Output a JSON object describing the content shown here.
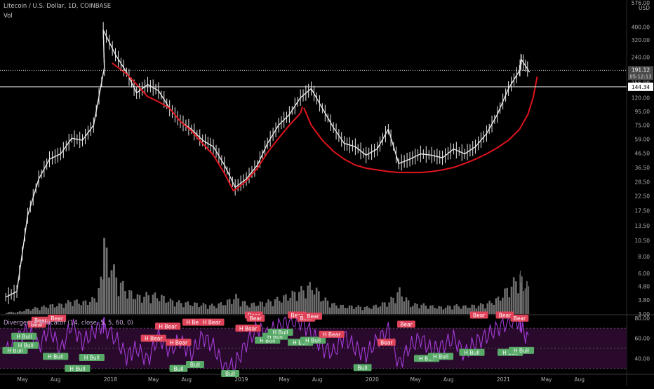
{
  "header": {
    "symbol_line": "Litecoin / U.S. Dollar, 1D, COINBASE",
    "volume_label": "Vol",
    "indicator_label": "Divergence Indicator (14, close, 5, 5, 60, 0)"
  },
  "price_axis": {
    "currency": "USD",
    "top_value": "576.00",
    "ticks": [
      "400.00",
      "320.00",
      "240.00",
      "190.00",
      "155.00",
      "120.00",
      "95.00",
      "75.00",
      "59.00",
      "46.50",
      "36.50",
      "28.50",
      "22.50",
      "17.50",
      "13.50",
      "10.50",
      "8.00",
      "6.00",
      "4.80",
      "3.80",
      "3.00"
    ],
    "last_price": "191.12",
    "countdown": "05:12:13",
    "support_price": "144.34"
  },
  "osc_axis": {
    "ticks": [
      "80.00",
      "60.00",
      "40.00"
    ]
  },
  "time_axis": {
    "labels": [
      "May",
      "Aug",
      "2018",
      "May",
      "Aug",
      "2019",
      "May",
      "Aug",
      "2020",
      "May",
      "Aug",
      "2021",
      "May",
      "Aug"
    ]
  },
  "colors": {
    "bg": "#000000",
    "candle": "#e8e8e8",
    "volume": "#6e6e6e",
    "curve": "#e0141c",
    "osc": "#a23bd6",
    "bull": "#58a868",
    "bear": "#e0445a",
    "axis_text": "#b0b0b0",
    "band": "#2a0a2c"
  },
  "chart_data": {
    "type": "line",
    "scale": "log",
    "series": [
      {
        "x": [
          "2017-03",
          "2017-04",
          "2017-05",
          "2017-06",
          "2017-07",
          "2017-08",
          "2017-09",
          "2017-10",
          "2017-11",
          "2017-12",
          "2017-12-12",
          "2018-01",
          "2018-02",
          "2018-03",
          "2018-04",
          "2018-05",
          "2018-06",
          "2018-07",
          "2018-08",
          "2018-09",
          "2018-10",
          "2018-11",
          "2018-12",
          "2019-01",
          "2019-02",
          "2019-03",
          "2019-04",
          "2019-05",
          "2019-06",
          "2019-07",
          "2019-08",
          "2019-09",
          "2019-10",
          "2019-11",
          "2019-12",
          "2020-01",
          "2020-02",
          "2020-03",
          "2020-04",
          "2020-05",
          "2020-06",
          "2020-07",
          "2020-08",
          "2020-09",
          "2020-10",
          "2020-11",
          "2020-12",
          "2021-01",
          "2021-02",
          "2021-02-20",
          "2021-03"
        ],
        "y": [
          4,
          4.4,
          16,
          30,
          42,
          46,
          60,
          58,
          75,
          200,
          380,
          250,
          185,
          130,
          150,
          135,
          100,
          80,
          70,
          58,
          52,
          38,
          26,
          30,
          38,
          55,
          75,
          90,
          120,
          140,
          100,
          72,
          55,
          52,
          45,
          50,
          70,
          39,
          42,
          46,
          45,
          43,
          50,
          46,
          52,
          65,
          90,
          140,
          190,
          230,
          185
        ]
      }
    ],
    "volume": [
      2,
      2,
      5,
      7,
      9,
      10,
      14,
      12,
      16,
      45,
      70,
      38,
      24,
      18,
      20,
      19,
      14,
      12,
      11,
      10,
      9,
      12,
      18,
      10,
      11,
      13,
      16,
      20,
      25,
      30,
      16,
      10,
      8,
      8,
      7,
      9,
      13,
      24,
      10,
      10,
      8,
      7,
      9,
      8,
      9,
      11,
      16,
      28,
      40,
      35,
      26
    ],
    "oscillator": [
      46,
      60,
      68,
      52,
      70,
      48,
      74,
      56,
      66,
      76,
      72,
      60,
      42,
      50,
      38,
      62,
      48,
      58,
      44,
      62,
      52,
      30,
      34,
      55,
      70,
      64,
      72,
      78,
      76,
      66,
      50,
      46,
      62,
      50,
      44,
      58,
      68,
      34,
      52,
      60,
      48,
      52,
      60,
      44,
      56,
      62,
      70,
      76,
      78,
      70,
      56
    ],
    "ylim": [
      3,
      576
    ],
    "osc_ylim": [
      25,
      82
    ],
    "cup_curve": {
      "x": [
        "2018-01-07",
        "2018-02",
        "2018-03",
        "2018-04",
        "2018-05",
        "2018-06",
        "2018-07",
        "2018-08",
        "2018-09",
        "2018-10",
        "2018-11",
        "2018-12-10",
        "2018-12-20",
        "2019-01",
        "2019-02",
        "2019-03",
        "2019-04",
        "2019-05",
        "2019-06",
        "2019-06-20"
      ],
      "y": [
        215,
        180,
        150,
        122,
        112,
        100,
        80,
        68,
        55,
        45,
        33,
        24.5,
        25.5,
        29,
        36,
        47,
        60,
        75,
        92,
        102
      ]
    },
    "cup_curve_2": {
      "x": [
        "2019-06-25",
        "2019-07-15",
        "2019-08-15",
        "2019-09-15",
        "2019-10-15",
        "2019-11-15",
        "2019-12-15",
        "2020-01-15",
        "2020-02-15",
        "2020-03-15",
        "2020-04-15",
        "2020-05-15",
        "2020-06-15",
        "2020-07-15",
        "2020-08-15",
        "2020-09-15",
        "2020-10-15",
        "2020-11-15",
        "2020-12-15",
        "2021-01-15",
        "2021-02-15",
        "2021-03-10",
        "2021-03-25",
        "2021-04-05"
      ],
      "y": [
        100,
        75,
        58,
        48,
        42,
        38,
        36,
        35,
        34,
        33.5,
        33.5,
        33.5,
        34,
        35,
        36.5,
        39,
        42,
        46,
        51,
        58,
        70,
        90,
        120,
        170
      ]
    },
    "signals": [
      {
        "kind": "bull",
        "text": "H Bull",
        "x": "2017-04-10",
        "osc": 48
      },
      {
        "kind": "bull",
        "text": "H Bull",
        "x": "2017-05-05",
        "osc": 62
      },
      {
        "kind": "bull",
        "text": "H Bull",
        "x": "2017-05-10",
        "osc": 53
      },
      {
        "kind": "bear",
        "text": "Bear",
        "x": "2017-06-10",
        "osc": 74
      },
      {
        "kind": "bear",
        "text": "Bear",
        "x": "2017-06-20",
        "osc": 78
      },
      {
        "kind": "bear",
        "text": "Bear",
        "x": "2017-08-05",
        "osc": 80
      },
      {
        "kind": "bull",
        "text": "H Bull",
        "x": "2017-08-01",
        "osc": 42
      },
      {
        "kind": "bull",
        "text": "H Bull",
        "x": "2017-10-01",
        "osc": 30
      },
      {
        "kind": "bull",
        "text": "H Bull",
        "x": "2017-11-10",
        "osc": 41
      },
      {
        "kind": "bear",
        "text": "H Bear",
        "x": "2018-05-01",
        "osc": 60
      },
      {
        "kind": "bear",
        "text": "H Bear",
        "x": "2018-06-10",
        "osc": 72
      },
      {
        "kind": "bear",
        "text": "H Bear",
        "x": "2018-07-10",
        "osc": 56
      },
      {
        "kind": "bear",
        "text": "H Bear",
        "x": "2018-08-25",
        "osc": 76
      },
      {
        "kind": "bear",
        "text": "H Bear",
        "x": "2018-10-10",
        "osc": 76
      },
      {
        "kind": "bull",
        "text": "Bull",
        "x": "2018-07-10",
        "osc": 30
      },
      {
        "kind": "bull",
        "text": "Bull",
        "x": "2018-08-25",
        "osc": 34
      },
      {
        "kind": "bull",
        "text": "Bull",
        "x": "2018-12-01",
        "osc": 24
      },
      {
        "kind": "bear",
        "text": "H Bear",
        "x": "2019-01-20",
        "osc": 70
      },
      {
        "kind": "bear",
        "text": "Bear",
        "x": "2019-02-05",
        "osc": 84
      },
      {
        "kind": "bear",
        "text": "Bear",
        "x": "2019-02-10",
        "osc": 80
      },
      {
        "kind": "bull",
        "text": "H Bull",
        "x": "2019-03-15",
        "osc": 58
      },
      {
        "kind": "bull",
        "text": "H Bull",
        "x": "2019-04-05",
        "osc": 62
      },
      {
        "kind": "bull",
        "text": "H Bull",
        "x": "2019-04-20",
        "osc": 66
      },
      {
        "kind": "bear",
        "text": "Bear",
        "x": "2019-06-05",
        "osc": 84
      },
      {
        "kind": "bear",
        "text": "Bear",
        "x": "2019-07-01",
        "osc": 80
      },
      {
        "kind": "bear",
        "text": "Bear",
        "x": "2019-07-20",
        "osc": 82
      },
      {
        "kind": "bull",
        "text": "H Bull",
        "x": "2019-06-15",
        "osc": 56
      },
      {
        "kind": "bull",
        "text": "H Bull",
        "x": "2019-07-20",
        "osc": 58
      },
      {
        "kind": "bear",
        "text": "H Bear",
        "x": "2019-09-10",
        "osc": 64
      },
      {
        "kind": "bull",
        "text": "Bull",
        "x": "2019-12-05",
        "osc": 31
      },
      {
        "kind": "bear",
        "text": "Bear",
        "x": "2020-02-10",
        "osc": 56
      },
      {
        "kind": "bear",
        "text": "Bear",
        "x": "2020-04-05",
        "osc": 74
      },
      {
        "kind": "bull",
        "text": "H Bull",
        "x": "2020-06-01",
        "osc": 40
      },
      {
        "kind": "bull",
        "text": "H Bull",
        "x": "2020-07-10",
        "osc": 42
      },
      {
        "kind": "bull",
        "text": "H Bull",
        "x": "2020-10-05",
        "osc": 46
      },
      {
        "kind": "bear",
        "text": "Bear",
        "x": "2020-10-25",
        "osc": 84
      },
      {
        "kind": "bear",
        "text": "Bear",
        "x": "2021-01-05",
        "osc": 84
      },
      {
        "kind": "bear",
        "text": "Bear",
        "x": "2021-02-15",
        "osc": 80
      },
      {
        "kind": "bull",
        "text": "H Bull",
        "x": "2021-01-20",
        "osc": 46
      },
      {
        "kind": "bull",
        "text": "H Bull",
        "x": "2021-02-20",
        "osc": 48
      }
    ]
  }
}
